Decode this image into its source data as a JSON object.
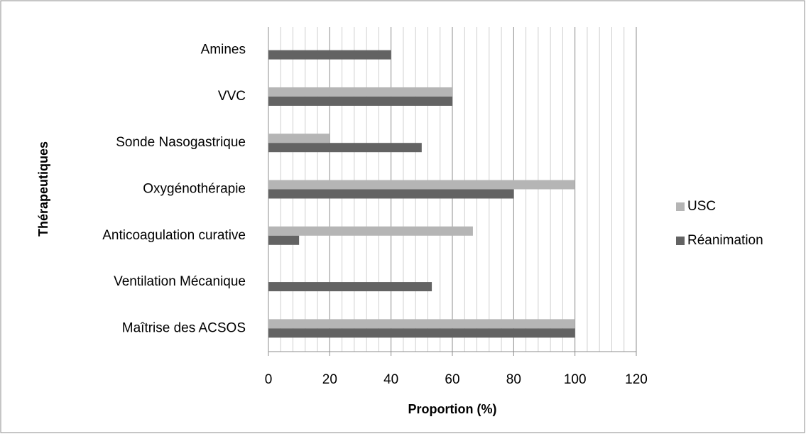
{
  "chart_data": {
    "type": "barh",
    "xlabel": "Proportion (%)",
    "ylabel": "Thérapeutiques",
    "categories": [
      "Amines",
      "VVC",
      "Sonde Nasogastrique",
      "Oxygénothérapie",
      "Anticoagulation curative",
      "Ventilation Mécanique",
      "Maîtrise des ACSOS"
    ],
    "series": [
      {
        "name": "USC",
        "color": "#b5b5b5",
        "values": [
          0,
          60,
          20,
          100,
          66.7,
          0,
          100
        ]
      },
      {
        "name": "Réanimation",
        "color": "#636363",
        "values": [
          40,
          60,
          50,
          80,
          10,
          53.3,
          100
        ]
      }
    ],
    "xlim": [
      0,
      120
    ],
    "xticks": [
      0,
      20,
      40,
      60,
      80,
      100,
      120
    ],
    "grid": true,
    "minor_grid_divisions": 5,
    "legend": "right"
  }
}
